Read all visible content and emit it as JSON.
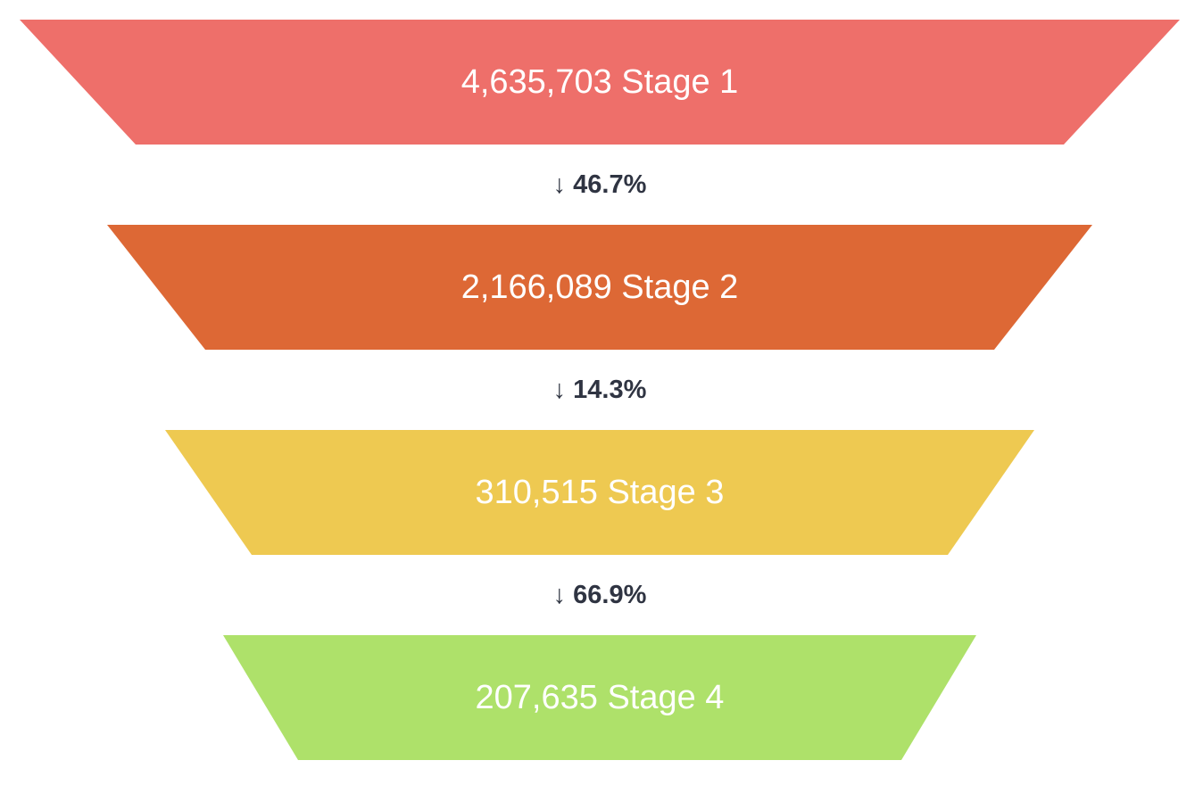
{
  "chart_data": {
    "type": "funnel",
    "stages": [
      {
        "name": "Stage 1",
        "value": 4635703,
        "value_label": "4,635,703",
        "color": "#ee6f6a"
      },
      {
        "name": "Stage 2",
        "value": 2166089,
        "value_label": "2,166,089",
        "color": "#dd6835"
      },
      {
        "name": "Stage 3",
        "value": 310515,
        "value_label": "310,515",
        "color": "#eec951"
      },
      {
        "name": "Stage 4",
        "value": 207635,
        "value_label": "207,635",
        "color": "#aee16a"
      }
    ],
    "conversions": [
      {
        "arrow": "↓",
        "value": "46.7%"
      },
      {
        "arrow": "↓",
        "value": "14.3%"
      },
      {
        "arrow": "↓",
        "value": "66.9%"
      }
    ]
  }
}
